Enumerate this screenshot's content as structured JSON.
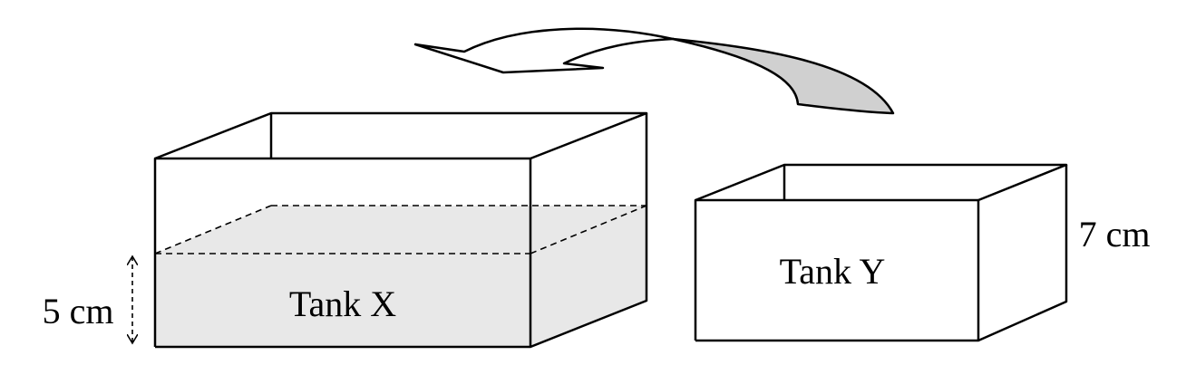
{
  "tank_x": {
    "label": "Tank X",
    "water_height_label": "5 cm"
  },
  "tank_y": {
    "label": "Tank Y",
    "height_label": "7 cm"
  },
  "colors": {
    "water_fill": "#e8e8e8",
    "arrow_fill": "#d0d0d0",
    "stroke": "#000000",
    "background": "#ffffff"
  },
  "icons": {
    "pour_arrow": "curved-arrow-icon",
    "height_marker": "double-headed-arrow-icon"
  }
}
